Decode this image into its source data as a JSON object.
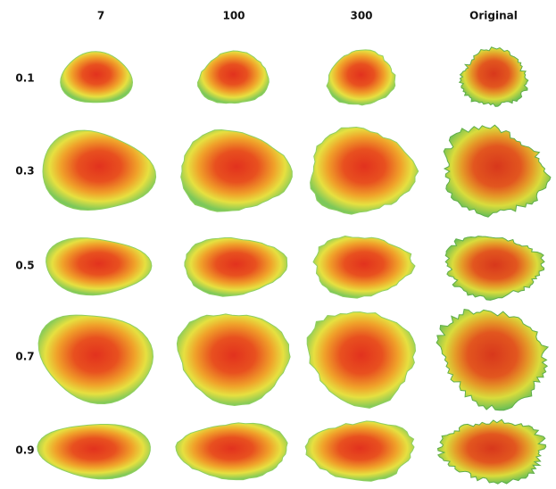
{
  "columns": [
    "7",
    "100",
    "300",
    "Original"
  ],
  "rows": [
    "0.1",
    "0.3",
    "0.5",
    "0.7",
    "0.9"
  ]
}
